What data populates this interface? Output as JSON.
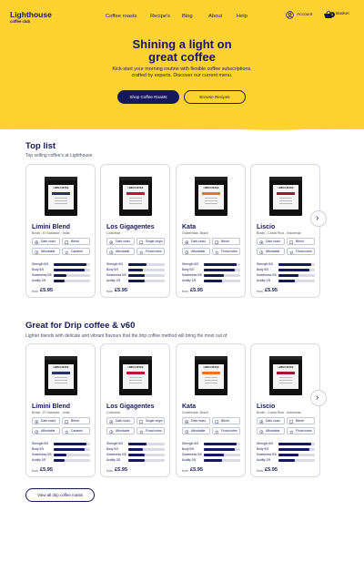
{
  "brand": {
    "name": "Lighthouse",
    "tagline": "coffee club"
  },
  "nav": {
    "links": [
      "Coffee roasts",
      "Recipe's",
      "Blog",
      "About",
      "Help"
    ],
    "account_label": "Account",
    "basket_label": "Basket",
    "basket_count": "1"
  },
  "hero": {
    "title_line1": "Shining a light on",
    "title_line2": "great coffee",
    "subtitle_line1": "Kick-start your morning routine with flexible coffee subscriptions,",
    "subtitle_line2": "crafted by experts. Discover our current menu.",
    "primary_cta": "Shop Coffee Roasts",
    "secondary_cta": "Browse Recipes"
  },
  "sections": [
    {
      "title": "Top list",
      "subtitle": "Top selling coffee's at Lighthouse",
      "products": [
        {
          "name": "Limini Blend",
          "origin": "Brazil - El Salvador - India",
          "tags": [
            "Dark roast",
            "Blend",
            "Affordable",
            "Caramel"
          ],
          "price_prefix": "from",
          "price": "£5.95",
          "label_color": "#2b2f6b",
          "strength": 0.9,
          "body": 0.85,
          "sweetness": 0.35,
          "acidity": 0.3
        },
        {
          "name": "Los Gigagentes",
          "origin": "Colombia",
          "tags": [
            "Dark roast",
            "Single origin",
            "Affordable",
            "Floral notes"
          ],
          "price_prefix": "from",
          "price": "£5.95",
          "label_color": "#b8173a",
          "strength": 0.5,
          "body": 0.4,
          "sweetness": 0.45,
          "acidity": 0.45
        },
        {
          "name": "Kata",
          "origin": "Guatemala, Brazil",
          "tags": [
            "Dark roast",
            "Blend",
            "Affordable",
            "Floral notes"
          ],
          "price_prefix": "from",
          "price": "£5.95",
          "label_color": "#e6742b",
          "strength": 0.9,
          "body": 0.85,
          "sweetness": 0.55,
          "acidity": 0.5
        },
        {
          "name": "Liscio",
          "origin": "Brazil - Costa Rica - Indonesia",
          "tags": [
            "Dark roast",
            "Blend",
            "Affordable",
            "Floral notes"
          ],
          "price_prefix": "from",
          "price": "£5.95",
          "label_color": "#9b1b35",
          "strength": 0.9,
          "body": 0.85,
          "sweetness": 0.55,
          "acidity": 0.45
        }
      ]
    },
    {
      "title": "Great for Drip coffee & v60",
      "subtitle": "Lighter blends with delicate and vibrant flavours that the drip coffee method will bring the most out of",
      "products": [
        {
          "name": "Limini Blend",
          "origin": "Brazil - El Salvador - India",
          "tags": [
            "Dark roast",
            "Blend",
            "Affordable",
            "Caramel"
          ],
          "price_prefix": "from",
          "price": "£5.95",
          "label_color": "#2b2f6b",
          "strength": 0.9,
          "body": 0.85,
          "sweetness": 0.35,
          "acidity": 0.3
        },
        {
          "name": "Los Gigagentes",
          "origin": "Colombia",
          "tags": [
            "Dark roast",
            "Single origin",
            "Affordable",
            "Floral notes"
          ],
          "price_prefix": "from",
          "price": "£5.95",
          "label_color": "#b8173a",
          "strength": 0.5,
          "body": 0.4,
          "sweetness": 0.45,
          "acidity": 0.45
        },
        {
          "name": "Kata",
          "origin": "Guatemala, Brazil",
          "tags": [
            "Dark roast",
            "Blend",
            "Affordable",
            "Floral notes"
          ],
          "price_prefix": "from",
          "price": "£5.95",
          "label_color": "#e6742b",
          "strength": 0.9,
          "body": 0.85,
          "sweetness": 0.55,
          "acidity": 0.5
        },
        {
          "name": "Liscio",
          "origin": "Brazil - Costa Rica - Indonesia",
          "tags": [
            "Dark roast",
            "Blend",
            "Affordable",
            "Floral notes"
          ],
          "price_prefix": "from",
          "price": "£5.95",
          "label_color": "#9b1b35",
          "strength": 0.9,
          "body": 0.85,
          "sweetness": 0.55,
          "acidity": 0.45
        }
      ]
    }
  ],
  "attributes": [
    "Strength 5/5",
    "Body 5/5",
    "Sweetness 5/5",
    "Acidity 2/5"
  ],
  "bag_label": "LIMINI COFFEE",
  "view_all_label": "View all drip coffee roasts",
  "colors": {
    "brand_yellow": "#fed22f",
    "navy": "#15185a"
  },
  "icons": {
    "account": "user-circle-icon",
    "basket": "basket-icon",
    "next": "chevron-right-icon"
  }
}
